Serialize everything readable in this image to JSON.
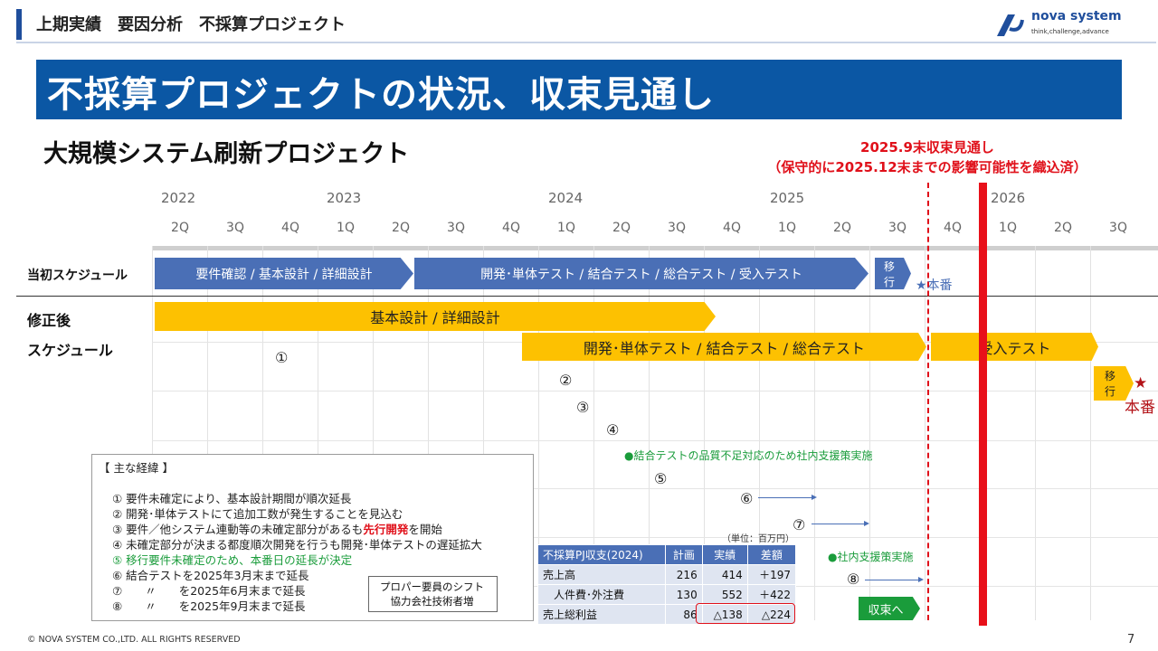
{
  "header": {
    "title": "上期実績　要因分析　不採算プロジェクト",
    "logo_name": "nova system",
    "logo_tagline": "think,challenge,advance"
  },
  "banner": {
    "title": "不採算プロジェクトの状況、収束見通し"
  },
  "subtitle": "大規模システム刷新プロジェクト",
  "forecast": {
    "line1": "2025.9末収束見通し",
    "line2": "（保守的に2025.12末までの影響可能性を織込済）"
  },
  "timeline": {
    "years": [
      "2022",
      "2023",
      "2024",
      "2025",
      "2026"
    ],
    "quarters": [
      "2Q",
      "3Q",
      "4Q",
      "1Q",
      "2Q",
      "3Q",
      "4Q",
      "1Q",
      "2Q",
      "3Q",
      "4Q",
      "1Q",
      "2Q",
      "3Q",
      "4Q",
      "1Q",
      "2Q",
      "3Q"
    ]
  },
  "rows": {
    "original": "当初スケジュール",
    "revised1": "修正後",
    "revised2": "スケジュール"
  },
  "original_schedule": {
    "bar1": "要件確認 / 基本設計 / 詳細設計",
    "bar2": "開発･単体テスト / 結合テスト / 総合テスト / 受入テスト",
    "bar3a": "移",
    "bar3b": "行",
    "release": "★本番"
  },
  "revised_schedule": {
    "bar1": "基本設計 / 詳細設計",
    "bar2": "開発･単体テスト / 結合テスト / 総合テスト",
    "bar3": "受入テスト",
    "bar4a": "移",
    "bar4b": "行",
    "star": "★",
    "release": "本番"
  },
  "markers": [
    "①",
    "②",
    "③",
    "④",
    "⑤",
    "⑥",
    "⑦",
    "⑧"
  ],
  "green_notes": {
    "n1": "●結合テストの品質不足対応のため社内支援策実施",
    "n2": "●社内支援策実施"
  },
  "history": {
    "title": "【 主な経緯 】",
    "items": [
      "① 要件未確定により、基本設計期間が順次延長",
      "② 開発･単体テストにて追加工数が発生することを見込む",
      "③ 要件／他システム連動等の未確定部分があるも",
      "④ 未確定部分が決まる都度順次開発を行うも開発･単体テストの遅延拡大",
      "⑤ 移行要件未確定のため、本番日の延長が決定",
      "⑥ 結合テストを2025年3月末まで延長",
      "⑦　　〃　　を2025年6月末まで延長",
      "⑧　　〃　　を2025年9月末まで延長"
    ],
    "item3_highlight": "先行開発",
    "item3_tail": "を開始",
    "staffing_line1": "プロパー要員のシフト",
    "staffing_line2": "協力会社技術者増"
  },
  "pl_table": {
    "unit": "（単位：百万円）",
    "headers": [
      "不採算PJ収支(2024)",
      "計画",
      "実績",
      "差額"
    ],
    "rows": [
      [
        "売上高",
        "216",
        "414",
        "＋197"
      ],
      [
        "　人件費･外注費",
        "130",
        "552",
        "＋422"
      ],
      [
        "売上総利益",
        "86",
        "△138",
        "△224"
      ]
    ]
  },
  "close_button": "収束へ",
  "footer": {
    "copyright": "© NOVA SYSTEM CO.,LTD. ALL RIGHTS RESERVED",
    "page": "7"
  },
  "colors": {
    "navy": "#1f4e9c",
    "banner": "#0b57a4",
    "blue_bar": "#4a6fb6",
    "yellow_bar": "#fdc101",
    "red": "#e0101a",
    "green": "#1a9c3b"
  }
}
